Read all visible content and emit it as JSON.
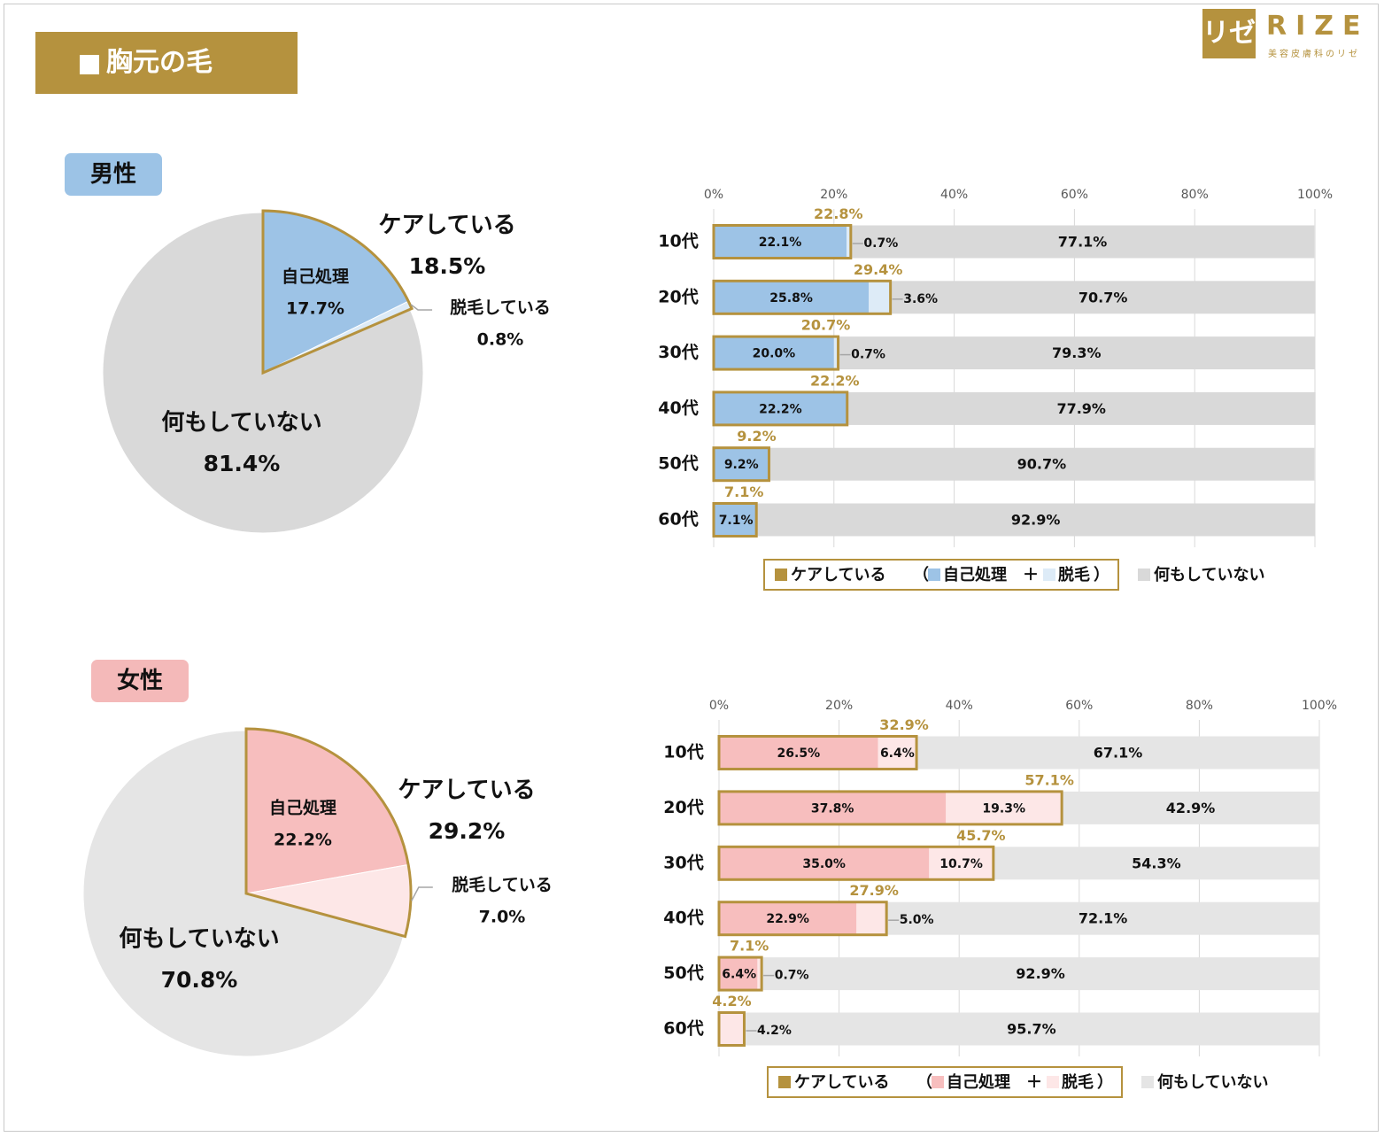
{
  "header": {
    "title": "胸元の毛"
  },
  "logo": {
    "mark": "リゼ",
    "word": "RIZE",
    "sub": "美容皮膚科のリゼ"
  },
  "badges": {
    "male": "男性",
    "female": "女性"
  },
  "colors": {
    "gold": "#b5923e",
    "male_self": "#9dc3e6",
    "male_epil": "#ddebf7",
    "female_self": "#f7bebe",
    "female_epil": "#fde7e7",
    "none_male": "#d9d9d9",
    "none_female": "#e5e5e5"
  },
  "chart_data": [
    {
      "id": "male-pie",
      "type": "pie",
      "slices": [
        {
          "label": "自己処理",
          "value": 17.7,
          "text": "17.7%"
        },
        {
          "label": "脱毛している",
          "value": 0.8,
          "text": "0.8%"
        },
        {
          "label": "何もしていない",
          "value": 81.4,
          "text": "81.4%"
        }
      ],
      "group_label": {
        "label": "ケアしている",
        "text": "18.5%"
      }
    },
    {
      "id": "male-bar",
      "type": "bar",
      "orientation": "horizontal",
      "stacked": true,
      "xlim": [
        0,
        100
      ],
      "ticks": [
        "0%",
        "20%",
        "40%",
        "60%",
        "80%",
        "100%"
      ],
      "categories": [
        "10代",
        "20代",
        "30代",
        "40代",
        "50代",
        "60代"
      ],
      "series": [
        {
          "name": "自己処理",
          "values": [
            22.1,
            25.8,
            20.0,
            22.2,
            9.2,
            7.1
          ],
          "labels": [
            "22.1%",
            "25.8%",
            "20.0%",
            "22.2%",
            "9.2%",
            "7.1%"
          ]
        },
        {
          "name": "脱毛",
          "values": [
            0.7,
            3.6,
            0.7,
            0,
            0,
            0
          ],
          "labels": [
            "0.7%",
            "3.6%",
            "0.7%",
            "",
            "",
            ""
          ]
        },
        {
          "name": "何もしていない",
          "values": [
            77.1,
            70.7,
            79.3,
            77.9,
            90.7,
            92.9
          ],
          "labels": [
            "77.1%",
            "70.7%",
            "79.3%",
            "77.9%",
            "90.7%",
            "92.9%"
          ]
        }
      ],
      "care_totals": [
        "22.8%",
        "29.4%",
        "20.7%",
        "22.2%",
        "9.2%",
        "7.1%"
      ],
      "legend": {
        "care": "ケアしている",
        "open": "（",
        "self": "自己処理",
        "plus": "＋",
        "epil": "脱毛",
        "close": "）",
        "none": "何もしていない"
      }
    },
    {
      "id": "female-pie",
      "type": "pie",
      "slices": [
        {
          "label": "自己処理",
          "value": 22.2,
          "text": "22.2%"
        },
        {
          "label": "脱毛している",
          "value": 7.0,
          "text": "7.0%"
        },
        {
          "label": "何もしていない",
          "value": 70.8,
          "text": "70.8%"
        }
      ],
      "group_label": {
        "label": "ケアしている",
        "text": "29.2%"
      }
    },
    {
      "id": "female-bar",
      "type": "bar",
      "orientation": "horizontal",
      "stacked": true,
      "xlim": [
        0,
        100
      ],
      "ticks": [
        "0%",
        "20%",
        "40%",
        "60%",
        "80%",
        "100%"
      ],
      "categories": [
        "10代",
        "20代",
        "30代",
        "40代",
        "50代",
        "60代"
      ],
      "series": [
        {
          "name": "自己処理",
          "values": [
            26.5,
            37.8,
            35.0,
            22.9,
            6.4,
            0
          ],
          "labels": [
            "26.5%",
            "37.8%",
            "35.0%",
            "22.9%",
            "6.4%",
            ""
          ]
        },
        {
          "name": "脱毛",
          "values": [
            6.4,
            19.3,
            10.7,
            5.0,
            0.7,
            4.2
          ],
          "labels": [
            "6.4%",
            "19.3%",
            "10.7%",
            "5.0%",
            "0.7%",
            "4.2%"
          ]
        },
        {
          "name": "何もしていない",
          "values": [
            67.1,
            42.9,
            54.3,
            72.1,
            92.9,
            95.7
          ],
          "labels": [
            "67.1%",
            "42.9%",
            "54.3%",
            "72.1%",
            "92.9%",
            "95.7%"
          ]
        }
      ],
      "care_totals": [
        "32.9%",
        "57.1%",
        "45.7%",
        "27.9%",
        "7.1%",
        "4.2%"
      ],
      "legend": {
        "care": "ケアしている",
        "open": "（",
        "self": "自己処理",
        "plus": "＋",
        "epil": "脱毛",
        "close": "）",
        "none": "何もしていない"
      }
    }
  ]
}
